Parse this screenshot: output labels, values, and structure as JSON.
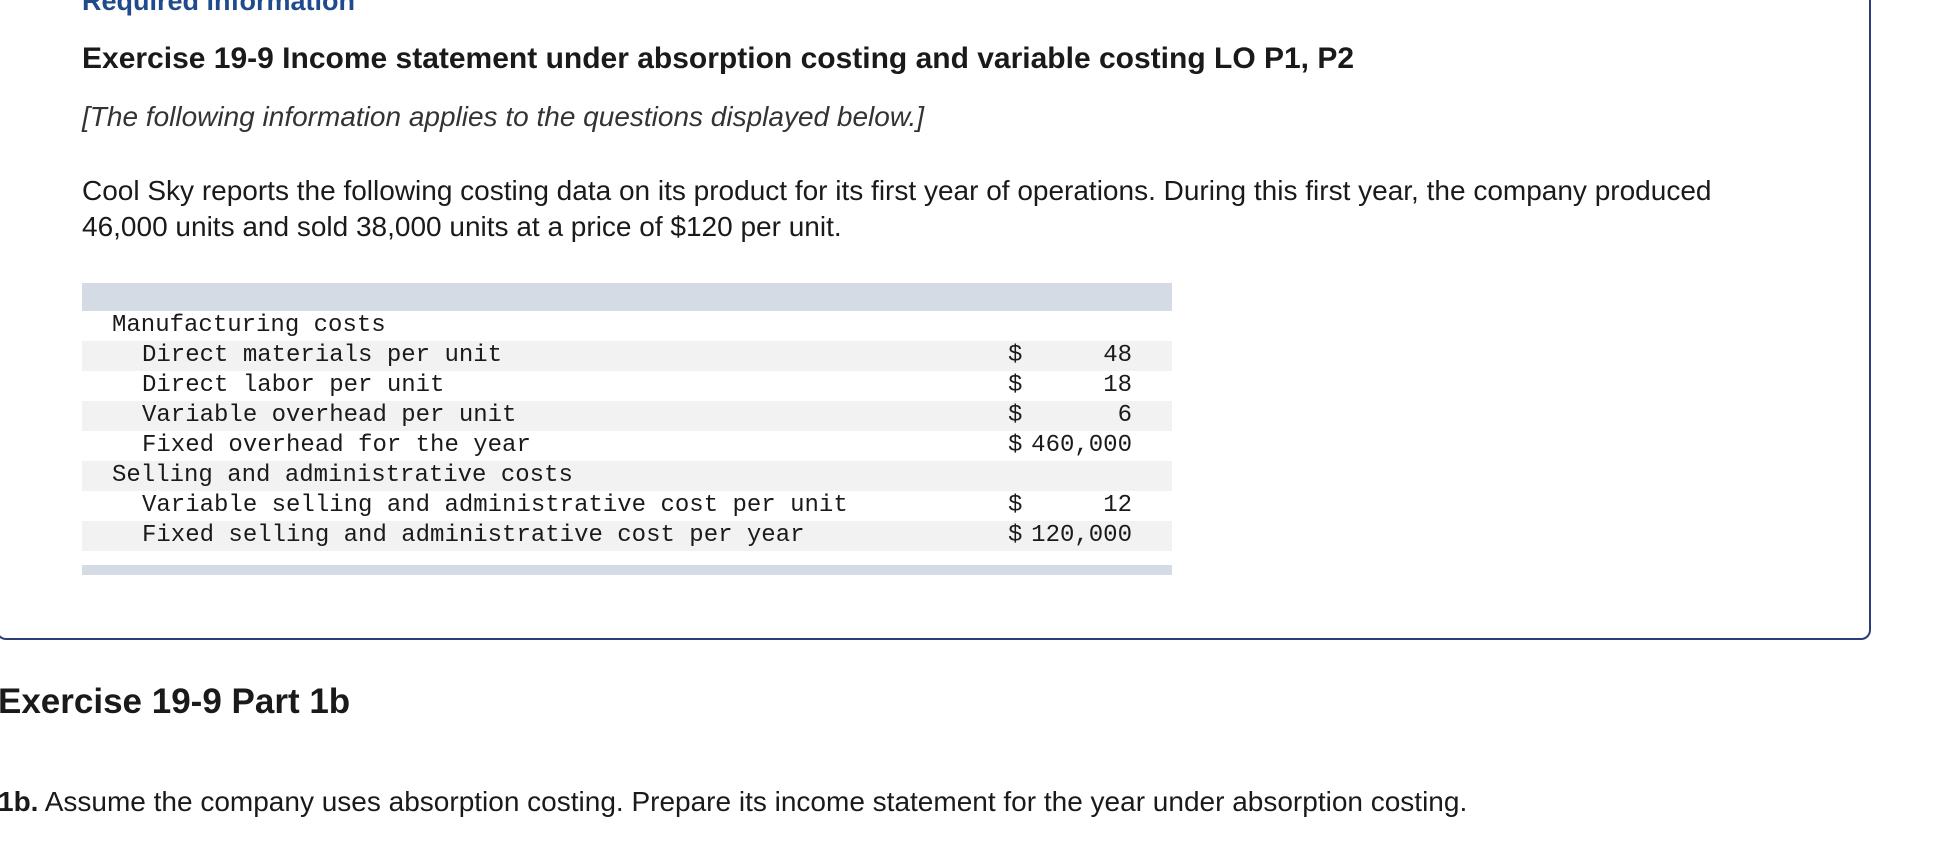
{
  "section_label": "Required information",
  "exercise_title": "Exercise 19-9 Income statement under absorption costing and variable costing LO P1, P2",
  "note": "[The following information applies to the questions displayed below.]",
  "description": "Cool Sky reports the following costing data on its product for its first year of operations. During this first year, the company produced 46,000 units and sold 38,000 units at a price of $120 per unit.",
  "table": {
    "rows": [
      {
        "label": "Manufacturing costs",
        "indent": 0
      },
      {
        "label": "Direct materials per unit",
        "indent": 1,
        "currency": "$",
        "amount": "48"
      },
      {
        "label": "Direct labor per unit",
        "indent": 1,
        "currency": "$",
        "amount": "18"
      },
      {
        "label": "Variable overhead per unit",
        "indent": 1,
        "currency": "$",
        "amount": "6"
      },
      {
        "label": "Fixed overhead for the year",
        "indent": 1,
        "currency": "$",
        "amount": "460,000"
      },
      {
        "label": "Selling and administrative costs",
        "indent": 0
      },
      {
        "label": "Variable selling and administrative cost per unit",
        "indent": 1,
        "currency": "$",
        "amount": "12"
      },
      {
        "label": "Fixed selling and administrative cost per year",
        "indent": 1,
        "currency": "$",
        "amount": "120,000"
      }
    ]
  },
  "part_title": "Exercise 19-9 Part 1b",
  "question": {
    "number": "1b.",
    "text": "Assume the company uses absorption costing. Prepare its income statement for the year under absorption costing."
  }
}
